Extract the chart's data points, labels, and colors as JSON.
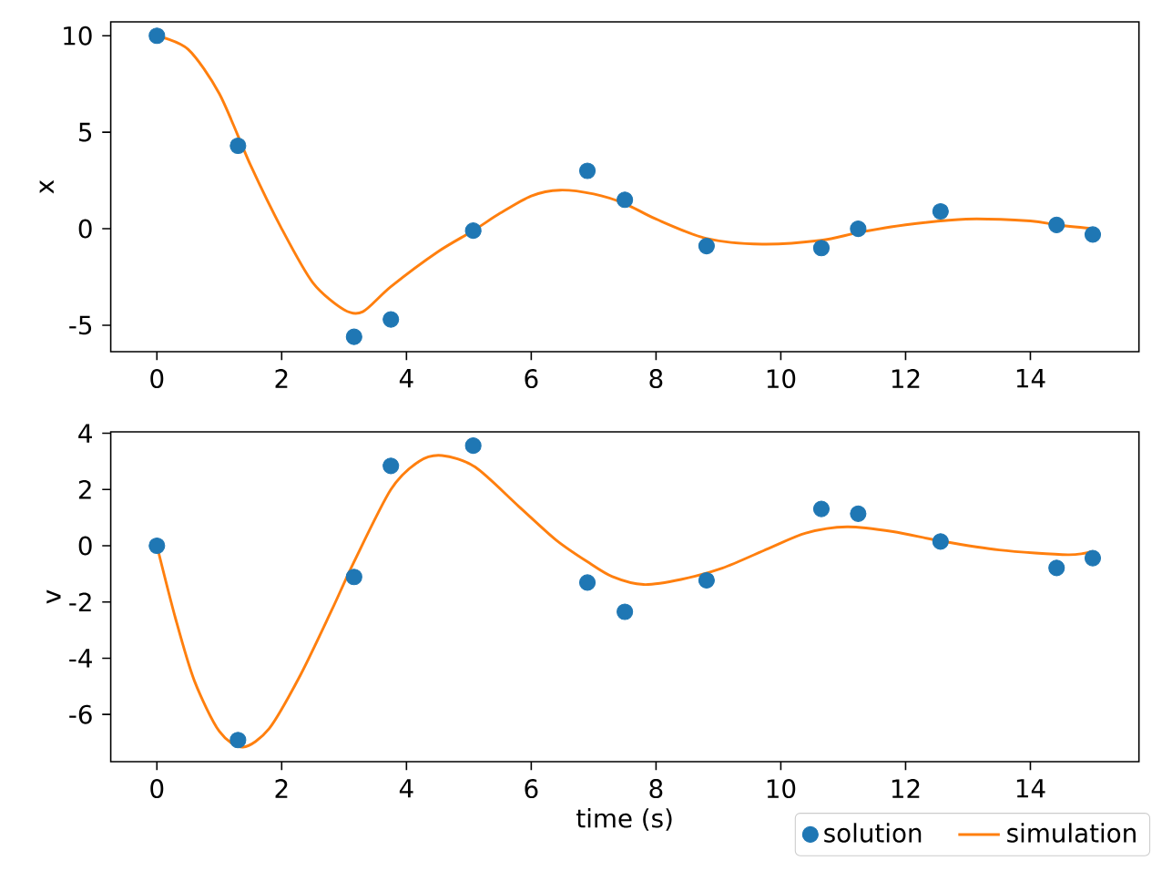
{
  "chart_data": [
    {
      "type": "scatter",
      "ylabel": "x",
      "xlim": [
        -0.74,
        15.74
      ],
      "ylim": [
        -6.37,
        10.72
      ],
      "xticks": [
        0,
        2,
        4,
        6,
        8,
        10,
        12,
        14
      ],
      "yticks": [
        -5,
        0,
        5,
        10
      ],
      "legend": false,
      "series": [
        {
          "marker": "circle",
          "color": "#1f77b4",
          "x": [
            0,
            1.3,
            3.16,
            3.75,
            5.07,
            6.9,
            7.5,
            8.81,
            10.65,
            11.24,
            12.56,
            14.42,
            15.0
          ],
          "values": [
            10,
            4.3,
            -5.6,
            -4.7,
            -0.1,
            3.0,
            1.5,
            -0.9,
            -1.0,
            0,
            0.9,
            0.2,
            -0.3
          ]
        },
        {
          "type": "line",
          "marker": "none",
          "color": "#ff7f0e",
          "x": [
            0,
            0.5,
            1.0,
            1.5,
            2.0,
            2.5,
            3.0,
            3.3,
            3.75,
            4.5,
            5.07,
            5.5,
            6.0,
            6.46,
            7.0,
            7.5,
            8.0,
            8.8,
            9.7,
            10.65,
            11.24,
            12.0,
            12.97,
            14.0,
            14.42,
            15.0
          ],
          "values": [
            10,
            9.3,
            7.0,
            3.3,
            0.0,
            -2.8,
            -4.2,
            -4.3,
            -3.0,
            -1.2,
            -0.1,
            0.8,
            1.7,
            2.0,
            1.8,
            1.3,
            0.5,
            -0.5,
            -0.8,
            -0.6,
            -0.2,
            0.2,
            0.5,
            0.4,
            0.2,
            0.0
          ]
        }
      ]
    },
    {
      "type": "scatter",
      "xlabel": "time (s)",
      "ylabel": "v",
      "xlim": [
        -0.74,
        15.74
      ],
      "ylim": [
        -7.68,
        4.05
      ],
      "xticks": [
        0,
        2,
        4,
        6,
        8,
        10,
        12,
        14
      ],
      "yticks": [
        -6,
        -4,
        -2,
        0,
        2,
        4
      ],
      "legend": "bottom right",
      "series": [
        {
          "name": "solution",
          "marker": "circle",
          "color": "#1f77b4",
          "x": [
            0,
            1.3,
            3.16,
            3.75,
            5.07,
            6.9,
            7.5,
            8.81,
            10.65,
            11.24,
            12.56,
            14.42,
            15.0
          ],
          "values": [
            0,
            -6.91,
            -1.11,
            2.84,
            3.56,
            -1.31,
            -2.35,
            -1.23,
            1.31,
            1.14,
            0.15,
            -0.79,
            -0.44
          ]
        },
        {
          "type": "line",
          "name": "simulation",
          "marker": "none",
          "color": "#ff7f0e",
          "x": [
            0,
            0.3,
            0.6,
            1.0,
            1.38,
            1.8,
            2.3,
            2.8,
            3.16,
            3.75,
            4.2,
            4.57,
            5.1,
            5.8,
            6.4,
            6.9,
            7.3,
            7.8,
            8.4,
            9.06,
            9.8,
            10.4,
            11.06,
            11.8,
            12.56,
            13.5,
            14.6,
            15.0
          ],
          "values": [
            0,
            -2.6,
            -4.8,
            -6.6,
            -7.16,
            -6.5,
            -4.6,
            -2.3,
            -0.57,
            2.0,
            3.0,
            3.21,
            2.8,
            1.4,
            0.2,
            -0.57,
            -1.1,
            -1.38,
            -1.2,
            -0.8,
            -0.1,
            0.45,
            0.67,
            0.5,
            0.17,
            -0.15,
            -0.32,
            -0.2
          ]
        }
      ]
    }
  ]
}
